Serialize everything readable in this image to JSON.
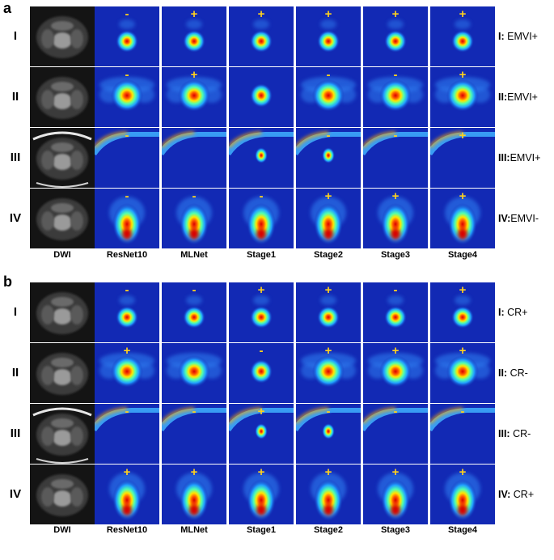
{
  "colors": {
    "background_blue": "#1229b4",
    "sign": "#ffd21e",
    "dwi_background": "#141414"
  },
  "panels": [
    {
      "letter": "a",
      "columns": [
        "DWI",
        "ResNet10",
        "MLNet",
        "Stage1",
        "Stage2",
        "Stage3",
        "Stage4"
      ],
      "rows": [
        {
          "roman": "I",
          "pattern": "small-lesion",
          "result_roman": "I:",
          "result_text": " EMVI+",
          "signs": [
            "-",
            "+",
            "+",
            "+",
            "+",
            "+"
          ]
        },
        {
          "roman": "II",
          "pattern": "wide-lesion",
          "result_roman": "II:",
          "result_text": "EMVI+",
          "signs": [
            "-",
            "+",
            "",
            "-",
            "-",
            "+"
          ]
        },
        {
          "roman": "III",
          "pattern": "edge-band",
          "result_roman": "III:",
          "result_text": "EMVI+",
          "signs": [
            "-",
            "",
            "",
            "-",
            "-",
            "+"
          ]
        },
        {
          "roman": "IV",
          "pattern": "tall-lesion",
          "result_roman": "IV:",
          "result_text": "EMVI-",
          "signs": [
            "-",
            "-",
            "-",
            "+",
            "+",
            "+"
          ]
        }
      ]
    },
    {
      "letter": "b",
      "columns": [
        "DWI",
        "ResNet10",
        "MLNet",
        "Stage1",
        "Stage2",
        "Stage3",
        "Stage4"
      ],
      "rows": [
        {
          "roman": "I",
          "pattern": "small-lesion",
          "result_roman": "I:",
          "result_text": " CR+",
          "signs": [
            "-",
            "-",
            "+",
            "+",
            "-",
            "+"
          ]
        },
        {
          "roman": "II",
          "pattern": "wide-lesion",
          "result_roman": "II:",
          "result_text": " CR-",
          "signs": [
            "+",
            "",
            "-",
            "+",
            "+",
            "+"
          ]
        },
        {
          "roman": "III",
          "pattern": "edge-band",
          "result_roman": "III:",
          "result_text": " CR-",
          "signs": [
            "-",
            "-",
            "+",
            "-",
            "-",
            "-"
          ]
        },
        {
          "roman": "IV",
          "pattern": "tall-lesion",
          "result_roman": "IV:",
          "result_text": " CR+",
          "signs": [
            "+",
            "+",
            "+",
            "+",
            "+",
            "+"
          ]
        }
      ]
    }
  ]
}
